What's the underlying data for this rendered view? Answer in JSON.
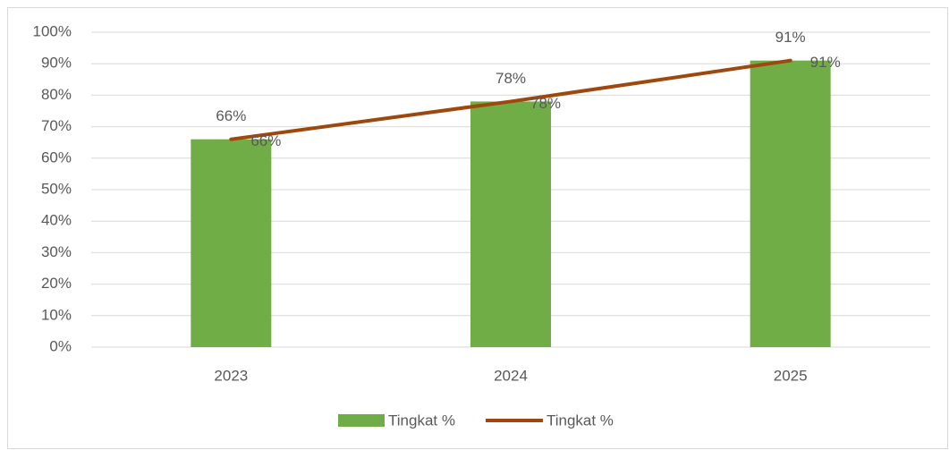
{
  "chart_data": {
    "type": "combo",
    "categories": [
      "2023",
      "2024",
      "2025"
    ],
    "series": [
      {
        "name": "Tingkat %",
        "type": "bar",
        "color": "#70ad47",
        "values": [
          66,
          78,
          91
        ],
        "value_labels": [
          "66%",
          "78%",
          "91%"
        ]
      },
      {
        "name": "Tingkat %",
        "type": "line",
        "color": "#9e480e",
        "values": [
          66,
          78,
          91
        ],
        "value_labels": [
          "66%",
          "78%",
          "91%"
        ]
      }
    ],
    "ylim": [
      0,
      100
    ],
    "yticks": [
      {
        "value": 0,
        "label": "0%"
      },
      {
        "value": 10,
        "label": "10%"
      },
      {
        "value": 20,
        "label": "20%"
      },
      {
        "value": 30,
        "label": "30%"
      },
      {
        "value": 40,
        "label": "40%"
      },
      {
        "value": 50,
        "label": "50%"
      },
      {
        "value": 60,
        "label": "60%"
      },
      {
        "value": 70,
        "label": "70%"
      },
      {
        "value": 80,
        "label": "80%"
      },
      {
        "value": 90,
        "label": "90%"
      },
      {
        "value": 100,
        "label": "100%"
      }
    ],
    "grid": true,
    "legend": "bottom"
  }
}
